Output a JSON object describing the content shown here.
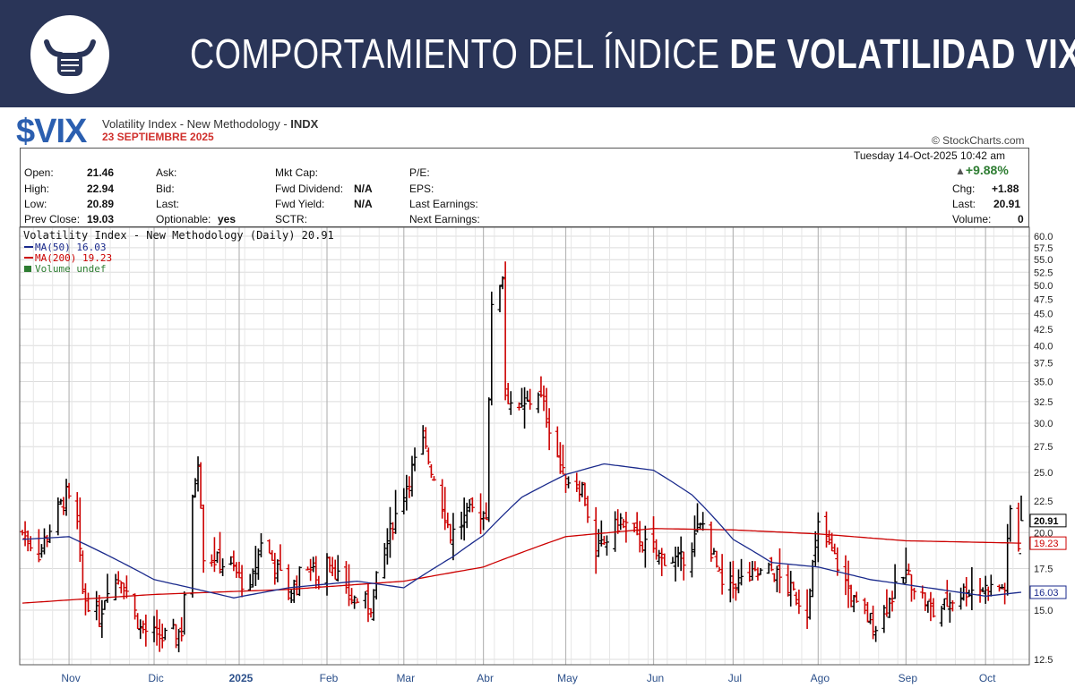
{
  "banner": {
    "title_light": "COMPORTAMIENTO DEL ÍNDICE ",
    "title_bold": "DE VOLATILIDAD VIX",
    "logo": "bull-fist-icon"
  },
  "header": {
    "symbol": "$VIX",
    "description": "Volatility Index - New Methodology - ",
    "exchange": "INDX",
    "subtitle": "23 SEPTIEMBRE 2025",
    "credit": "© StockCharts.com",
    "timestamp": "Tuesday  14-Oct-2025 10:42 am"
  },
  "quote": {
    "open_label": "Open:",
    "open": "21.46",
    "high_label": "High:",
    "high": "22.94",
    "low_label": "Low:",
    "low": "20.89",
    "prev_label": "Prev Close:",
    "prev": "19.03",
    "ask_label": "Ask:",
    "bid_label": "Bid:",
    "last_label": "Last:",
    "optionable_label": "Optionable:",
    "optionable": "yes",
    "mktcap_label": "Mkt Cap:",
    "fwddiv_label": "Fwd Dividend:",
    "fwddiv": "N/A",
    "fwdyield_label": "Fwd Yield:",
    "fwdyield": "N/A",
    "sctr_label": "SCTR:",
    "pe_label": "P/E:",
    "eps_label": "EPS:",
    "lastearn_label": "Last Earnings:",
    "nextearn_label": "Next Earnings:",
    "pct_change": "+9.88%",
    "chg_label": "Chg:",
    "chg": "+1.88",
    "last2_label": "Last:",
    "last2": "20.91",
    "volume_label": "Volume:",
    "volume": "0"
  },
  "colors": {
    "banner": "#2a3558",
    "up_bar": "#000000",
    "down_bar": "#cc0000",
    "ma50": "#1a2a8c",
    "ma200": "#cc0000",
    "symbol": "#2b5fb0"
  },
  "chart_data": {
    "type": "ohlc",
    "legend": {
      "price": "Volatility Index - New Methodology (Daily) 20.91",
      "ma50": "MA(50) 16.03",
      "ma200": "MA(200) 19.23",
      "volume": "Volume undef"
    },
    "y_ticks": [
      "12.5",
      "15.0",
      "17.5",
      "20.0",
      "22.5",
      "25.0",
      "27.5",
      "30.0",
      "32.5",
      "35.0",
      "37.5",
      "40.0",
      "42.5",
      "45.0",
      "47.5",
      "50.0",
      "52.5",
      "55.0",
      "57.5",
      "60.0"
    ],
    "ylim": [
      12.5,
      60.0
    ],
    "y_scale": "log",
    "x_labels": [
      "Nov",
      "Dic",
      "2025",
      "Feb",
      "Mar",
      "Abr",
      "May",
      "Jun",
      "Jul",
      "Ago",
      "Sep",
      "Oct"
    ],
    "price_tags": {
      "last": "20.91",
      "ma200": "19.23",
      "ma50": "16.03"
    },
    "date_range": [
      "2024-10-15",
      "2025-10-14"
    ],
    "month_starts": [
      "2024-11-01",
      "2024-12-02",
      "2025-01-02",
      "2025-02-03",
      "2025-03-03",
      "2025-04-01",
      "2025-05-01",
      "2025-06-02",
      "2025-07-01",
      "2025-08-01",
      "2025-09-02",
      "2025-10-01"
    ],
    "close_anchors": [
      [
        "2024-10-15",
        20.0
      ],
      [
        "2024-10-21",
        18.5
      ],
      [
        "2024-10-31",
        23.0
      ],
      [
        "2024-11-04",
        20.5
      ],
      [
        "2024-11-06",
        16.0
      ],
      [
        "2024-11-12",
        14.5
      ],
      [
        "2024-11-15",
        16.5
      ],
      [
        "2024-11-20",
        17.0
      ],
      [
        "2024-11-27",
        14.0
      ],
      [
        "2024-12-05",
        13.5
      ],
      [
        "2024-12-12",
        13.9
      ],
      [
        "2024-12-18",
        26.5
      ],
      [
        "2024-12-20",
        18.5
      ],
      [
        "2024-12-31",
        17.4
      ],
      [
        "2025-01-06",
        16.0
      ],
      [
        "2025-01-10",
        19.5
      ],
      [
        "2025-01-20",
        15.9
      ],
      [
        "2025-01-27",
        17.9
      ],
      [
        "2025-01-31",
        16.4
      ],
      [
        "2025-02-03",
        18.6
      ],
      [
        "2025-02-10",
        15.8
      ],
      [
        "2025-02-19",
        15.3
      ],
      [
        "2025-02-25",
        19.4
      ],
      [
        "2025-03-10",
        27.8
      ],
      [
        "2025-03-20",
        19.8
      ],
      [
        "2025-03-28",
        21.7
      ],
      [
        "2025-04-02",
        21.5
      ],
      [
        "2025-04-04",
        45.3
      ],
      [
        "2025-04-08",
        52.3
      ],
      [
        "2025-04-09",
        33.6
      ],
      [
        "2025-04-14",
        30.9
      ],
      [
        "2025-04-21",
        33.8
      ],
      [
        "2025-04-30",
        24.7
      ],
      [
        "2025-05-07",
        23.6
      ],
      [
        "2025-05-12",
        18.4
      ],
      [
        "2025-05-21",
        20.9
      ],
      [
        "2025-06-02",
        18.4
      ],
      [
        "2025-06-12",
        18.0
      ],
      [
        "2025-06-20",
        20.6
      ],
      [
        "2025-06-27",
        16.3
      ],
      [
        "2025-07-15",
        17.4
      ],
      [
        "2025-07-28",
        15.0
      ],
      [
        "2025-08-01",
        20.4
      ],
      [
        "2025-08-15",
        15.1
      ],
      [
        "2025-08-22",
        14.2
      ],
      [
        "2025-09-02",
        17.2
      ],
      [
        "2025-09-12",
        14.8
      ],
      [
        "2025-09-24",
        16.2
      ],
      [
        "2025-10-08",
        16.3
      ],
      [
        "2025-10-10",
        21.7
      ],
      [
        "2025-10-13",
        19.0
      ],
      [
        "2025-10-14",
        20.91
      ]
    ],
    "ma50_anchors": [
      [
        "2024-10-15",
        19.5
      ],
      [
        "2024-11-01",
        19.7
      ],
      [
        "2024-12-02",
        16.8
      ],
      [
        "2024-12-31",
        15.7
      ],
      [
        "2025-01-20",
        16.3
      ],
      [
        "2025-02-14",
        16.7
      ],
      [
        "2025-03-03",
        16.3
      ],
      [
        "2025-03-21",
        18.3
      ],
      [
        "2025-04-01",
        19.8
      ],
      [
        "2025-04-15",
        22.8
      ],
      [
        "2025-05-01",
        24.8
      ],
      [
        "2025-05-15",
        25.8
      ],
      [
        "2025-06-02",
        25.2
      ],
      [
        "2025-06-16",
        23.0
      ],
      [
        "2025-07-01",
        19.5
      ],
      [
        "2025-07-15",
        17.9
      ],
      [
        "2025-08-01",
        17.6
      ],
      [
        "2025-08-20",
        16.8
      ],
      [
        "2025-09-10",
        16.3
      ],
      [
        "2025-10-01",
        15.8
      ],
      [
        "2025-10-14",
        16.03
      ]
    ],
    "ma200_anchors": [
      [
        "2024-10-15",
        15.4
      ],
      [
        "2024-12-02",
        15.9
      ],
      [
        "2025-01-20",
        16.2
      ],
      [
        "2025-03-03",
        16.7
      ],
      [
        "2025-04-01",
        17.6
      ],
      [
        "2025-05-01",
        19.7
      ],
      [
        "2025-06-02",
        20.3
      ],
      [
        "2025-07-01",
        20.2
      ],
      [
        "2025-08-01",
        19.9
      ],
      [
        "2025-09-02",
        19.4
      ],
      [
        "2025-10-14",
        19.23
      ]
    ]
  }
}
